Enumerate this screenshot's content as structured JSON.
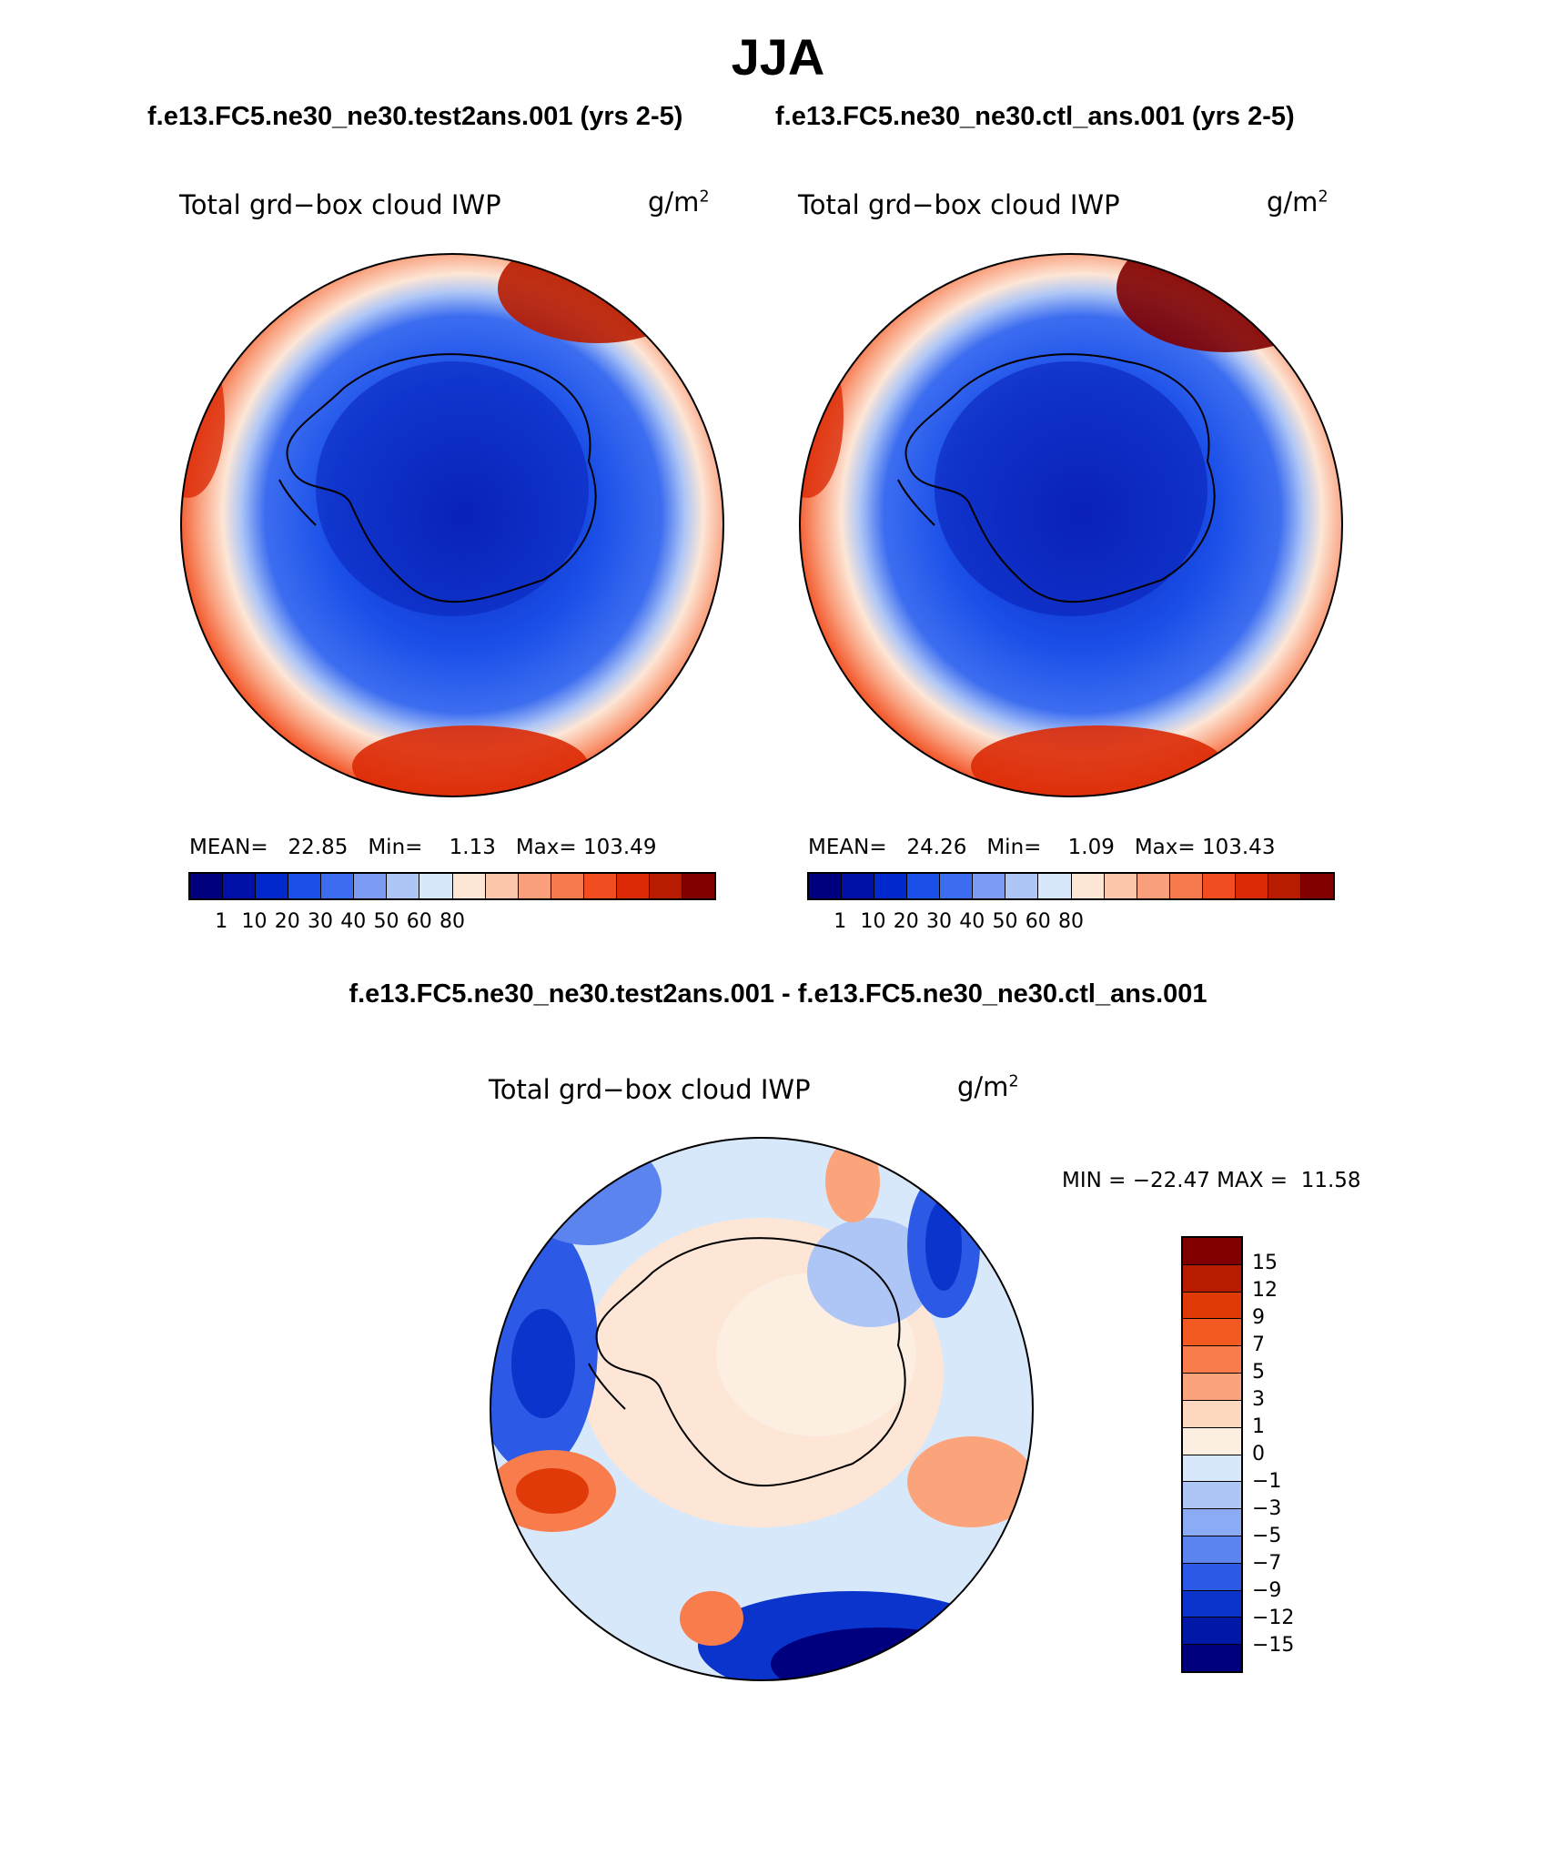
{
  "title": "JJA",
  "case_test_title": "f.e13.FC5.ne30_ne30.test2ans.001 (yrs 2-5)",
  "case_ctl_title": "f.e13.FC5.ne30_ne30.ctl_ans.001 (yrs 2-5)",
  "diff_title": "f.e13.FC5.ne30_ne30.test2ans.001 - f.e13.FC5.ne30_ne30.ctl_ans.001",
  "panels": {
    "test": {
      "variable": "Total grd−box cloud IWP",
      "units_base": "g/m",
      "units_exp": "2",
      "mean_label": "MEAN=",
      "mean_value": "22.85",
      "min_label": "Min=",
      "min_value": "1.13",
      "max_label": "Max=",
      "max_value": "103.49"
    },
    "ctl": {
      "variable": "Total grd−box cloud IWP",
      "units_base": "g/m",
      "units_exp": "2",
      "mean_label": "MEAN=",
      "mean_value": "24.26",
      "min_label": "Min=",
      "min_value": "1.09",
      "max_label": "Max=",
      "max_value": "103.43"
    },
    "diff": {
      "variable": "Total grd−box cloud IWP",
      "units_base": "g/m",
      "units_exp": "2",
      "minmax_text": "MIN = −22.47 MAX =  11.58"
    }
  },
  "abs_colorbar": {
    "colors": [
      "#00007f",
      "#0010a8",
      "#0028cc",
      "#1a4fe8",
      "#3c6df0",
      "#7b9cf2",
      "#aec6f6",
      "#d8e8fb",
      "#fde6d6",
      "#fcc6aa",
      "#f99f7c",
      "#f77a4e",
      "#f24d20",
      "#dc2a06",
      "#b81c00",
      "#800000"
    ],
    "labels": [
      "1",
      "10",
      "20",
      "30",
      "40",
      "50",
      "60",
      "80"
    ]
  },
  "diff_colorbar": {
    "colors": [
      "#800000",
      "#b81c00",
      "#e03a08",
      "#f25a22",
      "#f97c4c",
      "#fba47c",
      "#fdd8be",
      "#fdeee2",
      "#d8e8fb",
      "#aec6f6",
      "#8bacf4",
      "#5c84ef",
      "#2c5ae6",
      "#0a34cc",
      "#0018a8",
      "#00007f"
    ],
    "labels": [
      "15",
      "12",
      "9",
      "7",
      "5",
      "3",
      "1",
      "0",
      "−1",
      "−3",
      "−5",
      "−7",
      "−9",
      "−12",
      "−15"
    ]
  },
  "colors": {
    "ice_core": "#0a22b8",
    "ice_mid": "#1a4fe8",
    "ring_light": "#d8e8fb",
    "ring_warm": "#f77a4e",
    "ring_hot": "#b81c00"
  }
}
